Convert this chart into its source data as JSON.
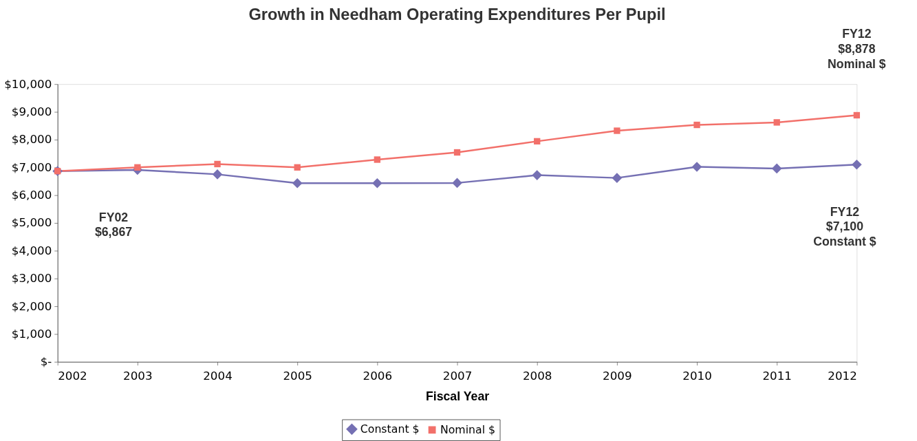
{
  "chart_data": {
    "type": "line",
    "title": "Growth in Needham Operating Expenditures Per Pupil",
    "xlabel": "Fiscal Year",
    "x": [
      2002,
      2003,
      2004,
      2005,
      2006,
      2007,
      2008,
      2009,
      2010,
      2011,
      2012
    ],
    "series": [
      {
        "name": "Constant $",
        "color": "#7570b3",
        "marker": "diamond",
        "values": [
          6867,
          6910,
          6750,
          6430,
          6430,
          6440,
          6720,
          6620,
          7020,
          6960,
          7100
        ]
      },
      {
        "name": "Nominal $",
        "color": "#f2706a",
        "marker": "square",
        "values": [
          6867,
          7000,
          7120,
          7000,
          7280,
          7540,
          7940,
          8320,
          8530,
          8620,
          8878
        ]
      }
    ],
    "xlim": [
      2002,
      2012
    ],
    "xticks": [
      2002,
      2003,
      2004,
      2005,
      2006,
      2007,
      2008,
      2009,
      2010,
      2011,
      2012
    ],
    "ylim": [
      0,
      10000
    ],
    "yticks": [
      {
        "value": 0,
        "label": "$-"
      },
      {
        "value": 1000,
        "label": "$1,000"
      },
      {
        "value": 2000,
        "label": "$2,000"
      },
      {
        "value": 3000,
        "label": "$3,000"
      },
      {
        "value": 4000,
        "label": "$4,000"
      },
      {
        "value": 5000,
        "label": "$5,000"
      },
      {
        "value": 6000,
        "label": "$6,000"
      },
      {
        "value": 7000,
        "label": "$7,000"
      },
      {
        "value": 8000,
        "label": "$8,000"
      },
      {
        "value": 9000,
        "label": "$9,000"
      },
      {
        "value": 10000,
        "label": "$10,000"
      }
    ],
    "annotations": [
      "FY02\n$6,867",
      "FY12\n$8,878\nNominal $",
      "FY12\n$7,100\nConstant $"
    ],
    "grid": false,
    "legend": "bottom",
    "line_style": "solid"
  }
}
